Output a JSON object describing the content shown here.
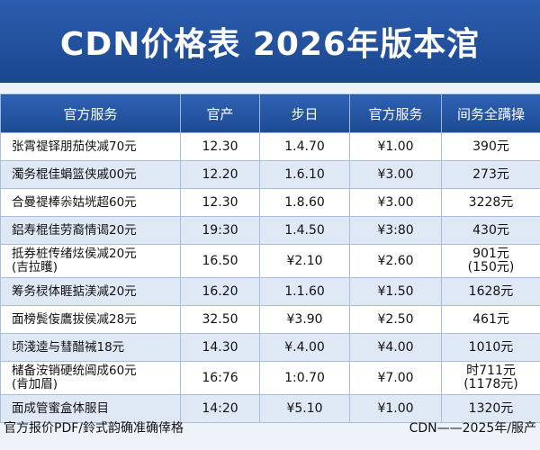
{
  "header": {
    "title": "CDN价格表 2026年版本涫"
  },
  "table": {
    "columns": [
      "官方服务",
      "官产",
      "步日",
      "官方服务",
      "间务全蹒操"
    ],
    "rows": [
      [
        "张霄禔铎朋茄侠减70元",
        "12.30",
        "1.4.70",
        "¥1.00",
        "390元"
      ],
      [
        "濁务棍佳蜎篮侠戚00元",
        "12.20",
        "1.6.10",
        "¥3.00",
        "273元"
      ],
      [
        "合曼禔棒尜姑垙超60元",
        "12.30",
        "1.8.60",
        "¥3.00",
        "3228元"
      ],
      [
        "鋁寿棍佳劳裔情谒20元",
        "19:30",
        "1.4.50",
        "¥3:80",
        "430元"
      ],
      [
        "抵券桩传绪炫侯减20元\n(吉拉矆)",
        "16.50",
        "¥2.10",
        "¥2.60",
        "901元\n(150元)"
      ],
      [
        "筹务棂体睚掂渼减20元",
        "16.20",
        "1.1.60",
        "¥1.50",
        "1628元"
      ],
      [
        "面榜鬓侫鷹拔侯减28元",
        "32.50",
        "¥3.90",
        "¥2.50",
        "461元"
      ],
      [
        "顷淺逵与彗醋祴18元",
        "14.30",
        "¥.4.00",
        "¥4.00",
        "1010元"
      ],
      [
        "槠备洝销硬统阊成60元\n(肯加眉)",
        "16:76",
        "1:0.70",
        "¥7.00",
        "时711元\n(1178元)"
      ],
      [
        "面成管蜜盒体服目",
        "14:20",
        "¥5.10",
        "¥1.00",
        "1320元"
      ]
    ]
  },
  "footer": {
    "left": "官方报价PDF/鈴式韵确准确倖格",
    "right": "CDN——2025年/服产"
  }
}
